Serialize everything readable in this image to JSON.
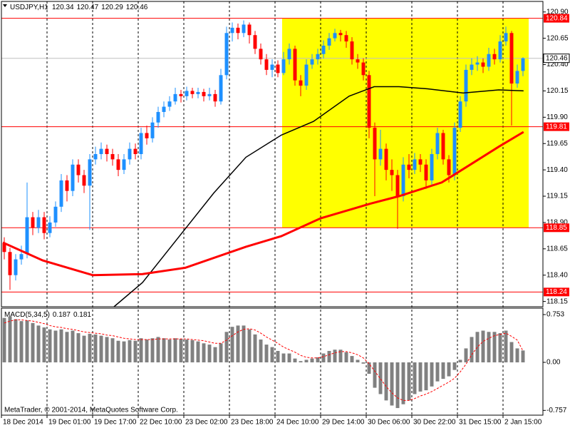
{
  "chart_data": [
    {
      "type": "candlestick",
      "title": "USDJPY,H1",
      "open": [
        118.7,
        118.62,
        118.4,
        118.55,
        118.6,
        118.95,
        118.85,
        118.95,
        118.8,
        118.9,
        119.05,
        119.3,
        119.2,
        119.45,
        119.35,
        119.25,
        119.5,
        119.55,
        119.6,
        119.55,
        119.5,
        119.4,
        119.5,
        119.6,
        119.55,
        119.75,
        119.7,
        119.85,
        119.95,
        120.0,
        120.05,
        120.12,
        120.1,
        120.15,
        120.12,
        120.14,
        120.1,
        120.12,
        120.05,
        120.3,
        120.7,
        120.75,
        120.7,
        120.78,
        120.68,
        120.55,
        120.45,
        120.35,
        120.4,
        120.32,
        120.45,
        120.55,
        120.25,
        120.2,
        120.4,
        120.45,
        120.5,
        120.58,
        120.65,
        120.7,
        120.68,
        120.62,
        120.45,
        120.42,
        120.3,
        119.8,
        119.5,
        119.6,
        119.4,
        119.35,
        119.15,
        119.45,
        119.4,
        119.5,
        119.45,
        119.3,
        119.55,
        119.75,
        119.5,
        119.35,
        119.8,
        120.05,
        120.35,
        120.4,
        120.42,
        120.38,
        120.5,
        120.45,
        120.62,
        120.7,
        120.22,
        120.34
      ],
      "high": [
        118.76,
        118.66,
        118.6,
        118.68,
        119.28,
        119.0,
        119.02,
        119.0,
        118.96,
        119.1,
        119.36,
        119.35,
        119.5,
        119.5,
        119.4,
        119.55,
        119.62,
        119.66,
        119.64,
        119.6,
        119.55,
        119.55,
        119.66,
        119.65,
        119.8,
        119.82,
        119.9,
        120.0,
        120.05,
        120.1,
        120.18,
        120.16,
        120.19,
        120.18,
        120.18,
        120.17,
        120.18,
        120.16,
        120.36,
        120.76,
        120.8,
        120.79,
        120.82,
        120.8,
        120.72,
        120.6,
        120.5,
        120.45,
        120.44,
        120.52,
        120.6,
        120.58,
        120.3,
        120.45,
        120.5,
        120.55,
        120.63,
        120.7,
        120.74,
        120.73,
        120.72,
        120.66,
        120.5,
        120.46,
        120.34,
        119.85,
        119.78,
        119.65,
        119.5,
        119.4,
        119.52,
        119.55,
        119.56,
        119.55,
        119.5,
        119.6,
        119.8,
        119.78,
        119.54,
        119.85,
        120.1,
        120.4,
        120.46,
        120.48,
        120.46,
        120.56,
        120.55,
        120.68,
        120.76,
        120.72,
        120.4,
        120.47
      ],
      "low": [
        118.55,
        118.26,
        118.35,
        118.5,
        118.56,
        118.78,
        118.8,
        118.74,
        118.76,
        118.86,
        119.0,
        119.1,
        119.15,
        119.28,
        119.18,
        118.83,
        119.45,
        119.5,
        119.48,
        119.44,
        119.34,
        119.36,
        119.45,
        119.5,
        119.5,
        119.64,
        119.66,
        119.8,
        119.9,
        119.96,
        120.02,
        120.04,
        120.06,
        120.08,
        120.08,
        120.05,
        120.06,
        120.0,
        120.02,
        120.26,
        120.62,
        120.64,
        120.66,
        120.6,
        120.5,
        120.4,
        120.3,
        120.28,
        120.28,
        120.3,
        120.4,
        120.2,
        120.1,
        120.16,
        120.36,
        120.4,
        120.46,
        120.54,
        120.62,
        120.62,
        120.56,
        120.4,
        120.36,
        120.25,
        119.7,
        119.15,
        119.44,
        119.3,
        119.2,
        118.84,
        119.1,
        119.32,
        119.36,
        119.38,
        119.22,
        119.26,
        119.5,
        119.45,
        119.28,
        119.3,
        119.76,
        120.0,
        120.3,
        120.34,
        120.32,
        120.34,
        120.4,
        120.42,
        120.58,
        119.82,
        120.18,
        120.29
      ],
      "close": [
        118.62,
        118.4,
        118.55,
        118.6,
        118.95,
        118.85,
        118.95,
        118.8,
        118.9,
        119.05,
        119.3,
        119.2,
        119.45,
        119.35,
        119.25,
        119.5,
        119.55,
        119.6,
        119.55,
        119.5,
        119.4,
        119.5,
        119.6,
        119.55,
        119.75,
        119.7,
        119.85,
        119.95,
        120.0,
        120.05,
        120.12,
        120.1,
        120.15,
        120.12,
        120.14,
        120.1,
        120.12,
        120.05,
        120.3,
        120.7,
        120.75,
        120.7,
        120.78,
        120.68,
        120.55,
        120.45,
        120.35,
        120.4,
        120.32,
        120.45,
        120.55,
        120.25,
        120.2,
        120.4,
        120.45,
        120.5,
        120.58,
        120.65,
        120.7,
        120.68,
        120.62,
        120.45,
        120.42,
        120.3,
        119.8,
        119.5,
        119.6,
        119.4,
        119.35,
        119.15,
        119.45,
        119.4,
        119.5,
        119.45,
        119.3,
        119.55,
        119.75,
        119.5,
        119.35,
        119.8,
        120.05,
        120.35,
        120.4,
        120.42,
        120.38,
        120.5,
        120.45,
        120.62,
        120.7,
        120.22,
        120.34,
        120.46
      ],
      "up_color": "#1e90ff",
      "down_color": "#ff0000",
      "lines": [
        {
          "color": "#000000",
          "x": [
            19.75,
            24.75,
            32.25,
            37.25,
            42.9,
            49.1,
            54.75,
            61,
            65.4,
            69.75,
            74.75,
            81,
            87.25,
            91.6
          ],
          "values": [
            118.1,
            118.33,
            118.84,
            119.18,
            119.52,
            119.73,
            119.86,
            120.1,
            120.19,
            120.19,
            120.17,
            120.13,
            120.16,
            120.15
          ]
        },
        {
          "color": "#ff0000",
          "x": [
            0.25,
            7.25,
            16,
            24.75,
            32.25,
            42.9,
            49.1,
            56,
            64.75,
            69.75,
            77.25,
            82.25,
            87.25,
            91.6
          ],
          "values": [
            118.71,
            118.54,
            118.4,
            118.41,
            118.47,
            118.67,
            118.77,
            118.94,
            119.08,
            119.15,
            119.28,
            119.45,
            119.62,
            119.76
          ]
        }
      ],
      "levels": [
        120.84,
        119.81,
        118.85,
        118.24
      ],
      "level_color": "#ff0000",
      "current_price": 120.46,
      "highlight": {
        "xlim": [
          49.25,
          92.5
        ],
        "ylim": [
          118.85,
          120.84
        ],
        "color": "#ffff00"
      },
      "xlim": [
        0,
        95
      ],
      "xticks": [
        {
          "value": 0,
          "label": "18 Dec 2014"
        },
        {
          "value": 8,
          "label": "19 Dec 01:00"
        },
        {
          "value": 16,
          "label": "19 Dec 17:00"
        },
        {
          "value": 24,
          "label": "22 Dec 10:00"
        },
        {
          "value": 32,
          "label": "23 Dec 02:00"
        },
        {
          "value": 40,
          "label": "23 Dec 18:00"
        },
        {
          "value": 48,
          "label": "24 Dec 10:00"
        },
        {
          "value": 56,
          "label": "29 Dec 14:00"
        },
        {
          "value": 64,
          "label": "30 Dec 06:00"
        },
        {
          "value": 72,
          "label": "30 Dec 22:00"
        },
        {
          "value": 80,
          "label": "31 Dec 15:00"
        },
        {
          "value": 88,
          "label": "2 Jan 15:00"
        }
      ],
      "ylim": [
        118.1,
        121.0
      ],
      "yticks": [
        {
          "value": 120.9,
          "label": "120.90"
        },
        120.65,
        {
          "value": 120.4,
          "label": "120.40"
        },
        120.15,
        {
          "value": 119.9,
          "label": "119.90"
        },
        119.65,
        {
          "value": 119.4,
          "label": "119.40"
        },
        119.15,
        {
          "value": 118.9,
          "label": "118.90"
        },
        118.65,
        {
          "value": 118.4,
          "label": "118.40"
        },
        118.15
      ],
      "grid": true
    },
    {
      "type": "macd",
      "title": "MACD(5,34,5)",
      "values": [
        0.7,
        0.72,
        0.68,
        0.65,
        0.66,
        0.62,
        0.58,
        0.55,
        0.52,
        0.5,
        0.52,
        0.48,
        0.5,
        0.46,
        0.42,
        0.45,
        0.44,
        0.42,
        0.4,
        0.38,
        0.34,
        0.33,
        0.35,
        0.34,
        0.38,
        0.36,
        0.38,
        0.4,
        0.38,
        0.36,
        0.38,
        0.37,
        0.36,
        0.35,
        0.33,
        0.3,
        0.28,
        0.24,
        0.3,
        0.48,
        0.56,
        0.58,
        0.58,
        0.52,
        0.44,
        0.36,
        0.28,
        0.24,
        0.18,
        0.14,
        0.14,
        0.06,
        0.02,
        0.04,
        0.06,
        0.08,
        0.14,
        0.18,
        0.2,
        0.2,
        0.16,
        0.1,
        0.04,
        -0.02,
        -0.18,
        -0.4,
        -0.5,
        -0.6,
        -0.68,
        -0.72,
        -0.66,
        -0.6,
        -0.5,
        -0.46,
        -0.44,
        -0.38,
        -0.3,
        -0.26,
        -0.22,
        -0.12,
        0.04,
        0.22,
        0.4,
        0.48,
        0.5,
        0.48,
        0.48,
        0.46,
        0.5,
        0.32,
        0.22,
        0.187
      ],
      "color": "#808080",
      "signal": {
        "color": "#ff0000",
        "values": [
          0.62,
          0.65,
          0.67,
          0.67,
          0.66,
          0.65,
          0.63,
          0.61,
          0.58,
          0.56,
          0.55,
          0.53,
          0.52,
          0.5,
          0.48,
          0.47,
          0.46,
          0.45,
          0.43,
          0.42,
          0.4,
          0.38,
          0.37,
          0.36,
          0.36,
          0.36,
          0.36,
          0.37,
          0.37,
          0.37,
          0.37,
          0.37,
          0.37,
          0.36,
          0.35,
          0.34,
          0.32,
          0.3,
          0.3,
          0.35,
          0.42,
          0.48,
          0.52,
          0.53,
          0.51,
          0.46,
          0.4,
          0.35,
          0.3,
          0.24,
          0.2,
          0.16,
          0.11,
          0.08,
          0.07,
          0.07,
          0.09,
          0.12,
          0.15,
          0.17,
          0.17,
          0.15,
          0.12,
          0.07,
          -0.02,
          -0.14,
          -0.26,
          -0.38,
          -0.48,
          -0.56,
          -0.6,
          -0.6,
          -0.57,
          -0.53,
          -0.5,
          -0.46,
          -0.41,
          -0.36,
          -0.31,
          -0.25,
          -0.15,
          -0.03,
          0.12,
          0.24,
          0.33,
          0.38,
          0.42,
          0.44,
          0.46,
          0.41,
          0.35,
          0.181
        ]
      },
      "xlim": [
        0,
        95
      ],
      "ylim": [
        -0.832,
        0.854
      ],
      "yticks": [
        0.753,
        {
          "value": 0,
          "label": "0.00"
        },
        -0.757
      ],
      "annotation": "MetaTrader, © 2001-2014, MetaQuotes Software Corp."
    }
  ]
}
